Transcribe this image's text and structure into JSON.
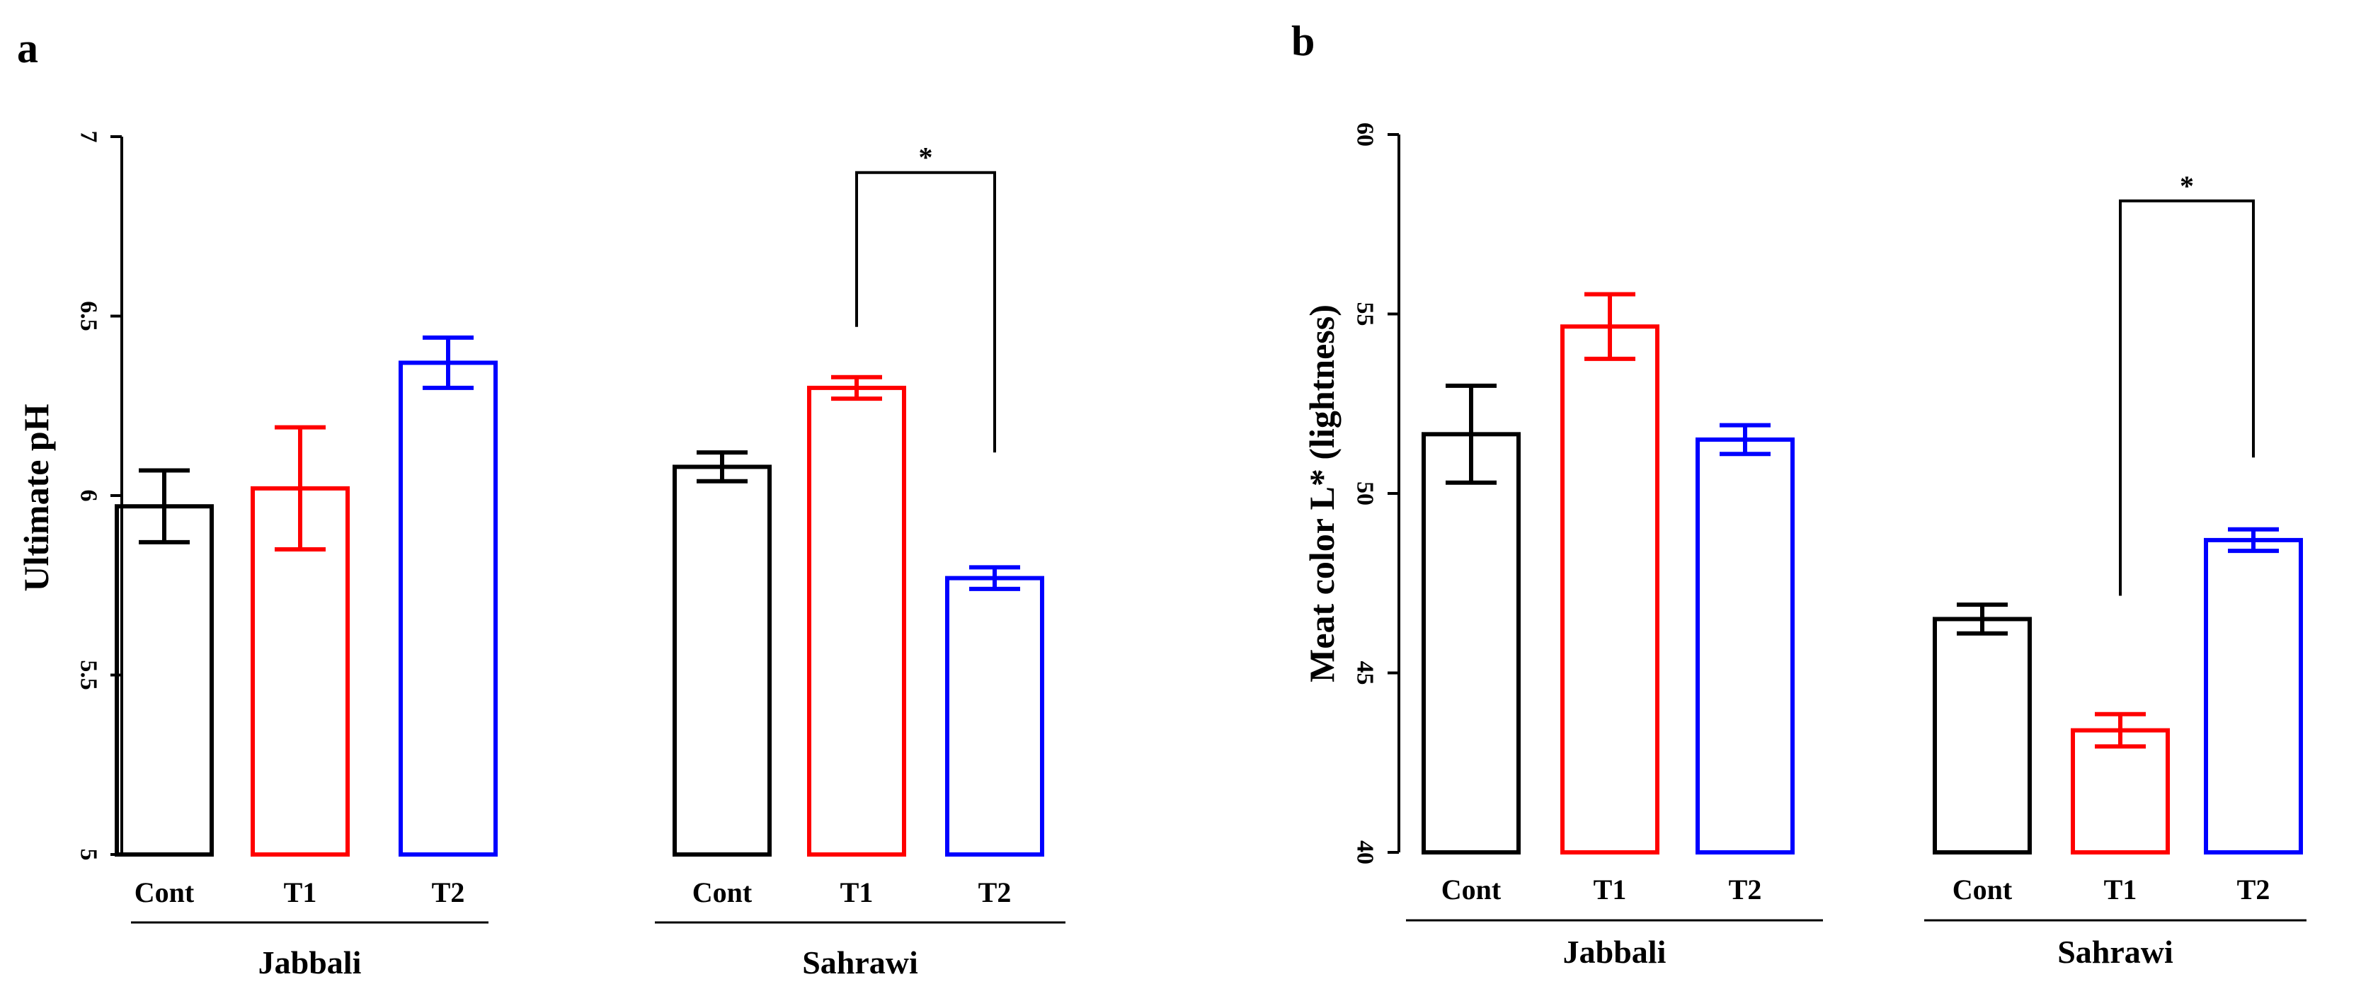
{
  "chart_data": [
    {
      "type": "bar",
      "panel_label": "a",
      "title": "",
      "xlabel": "",
      "ylabel": "Ultimate pH",
      "ylim": [
        5,
        7
      ],
      "yticks": [
        "5",
        "5.5",
        "6",
        "6.5",
        "7"
      ],
      "colors": {
        "Cont": "#000000",
        "T1": "#ff0000",
        "T2": "#0000ff"
      },
      "groups": [
        {
          "name": "Jabbali",
          "categories": [
            "Cont",
            "T1",
            "T2"
          ],
          "values": [
            5.97,
            6.02,
            6.37
          ],
          "errors": [
            0.1,
            0.17,
            0.07
          ]
        },
        {
          "name": "Sahrawi",
          "categories": [
            "Cont",
            "T1",
            "T2"
          ],
          "values": [
            6.08,
            6.3,
            5.77
          ],
          "errors": [
            0.04,
            0.03,
            0.03
          ]
        }
      ],
      "annotations": [
        {
          "group": "Sahrawi",
          "from": "T1",
          "to": "T2",
          "label": "*",
          "bracket_y": 6.9,
          "left_bottom": 6.47,
          "right_bottom": 6.12
        }
      ]
    },
    {
      "type": "bar",
      "panel_label": "b",
      "title": "",
      "xlabel": "",
      "ylabel": "Meat color L* (lightness)",
      "ylim": [
        40,
        60
      ],
      "yticks": [
        "40",
        "45",
        "50",
        "55",
        "60"
      ],
      "colors": {
        "Cont": "#000000",
        "T1": "#ff0000",
        "T2": "#0000ff"
      },
      "groups": [
        {
          "name": "Jabbali",
          "categories": [
            "Cont",
            "T1",
            "T2"
          ],
          "values": [
            51.65,
            54.65,
            51.5
          ],
          "errors": [
            1.35,
            0.9,
            0.4
          ]
        },
        {
          "name": "Sahrawi",
          "categories": [
            "Cont",
            "T1",
            "T2"
          ],
          "values": [
            46.5,
            43.4,
            48.7
          ],
          "errors": [
            0.4,
            0.45,
            0.3
          ]
        }
      ],
      "annotations": [
        {
          "group": "Sahrawi",
          "from": "T1",
          "to": "T2",
          "label": "*",
          "bracket_y": 58.15,
          "left_bottom": 47.15,
          "right_bottom": 51.0
        }
      ]
    }
  ]
}
